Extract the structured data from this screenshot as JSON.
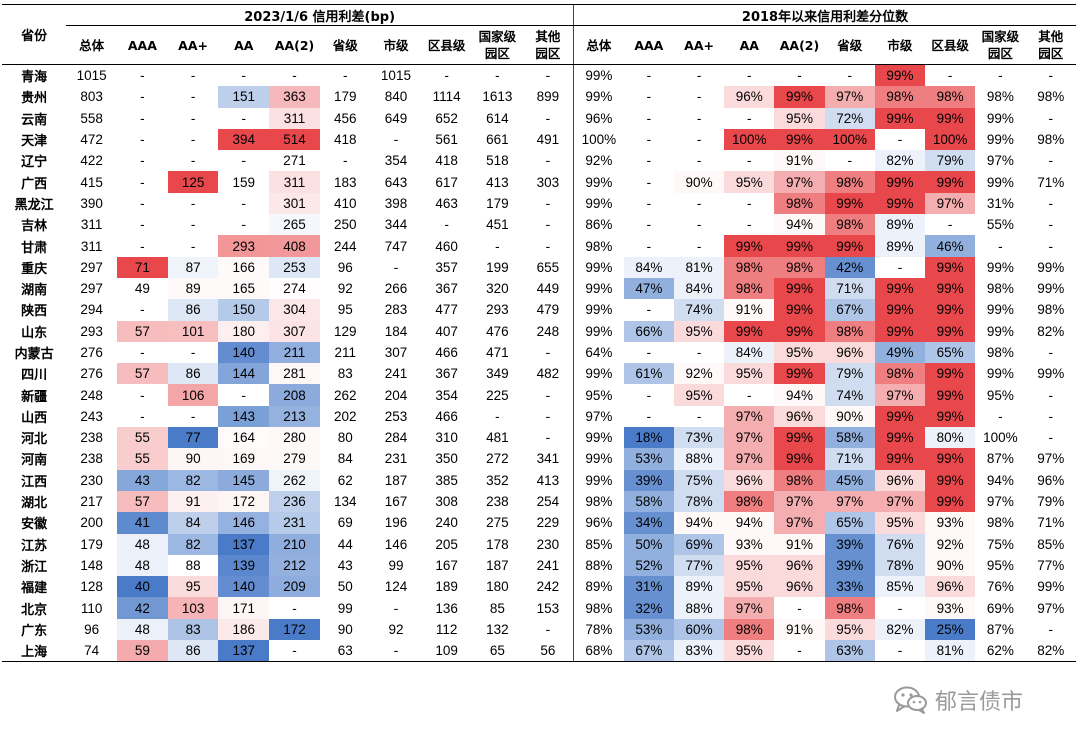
{
  "header": {
    "province_label": "省份",
    "group1_title": "2023/1/6 信用利差(bp)",
    "group2_title": "2018年以来信用利差分位数",
    "columns": [
      "总体",
      "AAA",
      "AA+",
      "AA",
      "AA(2)",
      "省级",
      "市级",
      "区县级",
      "国家级\n园区",
      "其他\n园区"
    ]
  },
  "colors": {
    "high": "#e8474b",
    "low": "#4a7bc8",
    "mid": "#ffffff"
  },
  "rows": [
    {
      "province": "青海",
      "spread": [
        "1015",
        "-",
        "-",
        "-",
        "-",
        "-",
        "1015",
        "-",
        "-",
        "-"
      ],
      "pct": [
        "99%",
        "-",
        "-",
        "-",
        "-",
        "-",
        "99%",
        "-",
        "-",
        "-"
      ]
    },
    {
      "province": "贵州",
      "spread": [
        "803",
        "-",
        "-",
        "151",
        "363",
        "179",
        "840",
        "1114",
        "1613",
        "899"
      ],
      "pct": [
        "99%",
        "-",
        "-",
        "96%",
        "99%",
        "97%",
        "98%",
        "98%",
        "98%",
        "98%"
      ]
    },
    {
      "province": "云南",
      "spread": [
        "558",
        "-",
        "-",
        "-",
        "311",
        "456",
        "649",
        "652",
        "614",
        "-"
      ],
      "pct": [
        "96%",
        "-",
        "-",
        "-",
        "95%",
        "72%",
        "99%",
        "99%",
        "99%",
        "-"
      ]
    },
    {
      "province": "天津",
      "spread": [
        "472",
        "-",
        "-",
        "394",
        "514",
        "418",
        "-",
        "561",
        "661",
        "491"
      ],
      "pct": [
        "100%",
        "-",
        "-",
        "100%",
        "99%",
        "100%",
        "-",
        "100%",
        "99%",
        "98%"
      ]
    },
    {
      "province": "辽宁",
      "spread": [
        "422",
        "-",
        "-",
        "-",
        "271",
        "-",
        "354",
        "418",
        "518",
        "-"
      ],
      "pct": [
        "92%",
        "-",
        "-",
        "-",
        "91%",
        "-",
        "82%",
        "79%",
        "97%",
        "-"
      ]
    },
    {
      "province": "广西",
      "spread": [
        "415",
        "-",
        "125",
        "159",
        "311",
        "183",
        "643",
        "617",
        "413",
        "303"
      ],
      "pct": [
        "99%",
        "-",
        "90%",
        "95%",
        "97%",
        "98%",
        "99%",
        "99%",
        "99%",
        "71%"
      ]
    },
    {
      "province": "黑龙江",
      "spread": [
        "390",
        "-",
        "-",
        "-",
        "301",
        "410",
        "398",
        "463",
        "179",
        "-"
      ],
      "pct": [
        "99%",
        "-",
        "-",
        "-",
        "98%",
        "99%",
        "99%",
        "97%",
        "31%",
        "-"
      ]
    },
    {
      "province": "吉林",
      "spread": [
        "311",
        "-",
        "-",
        "-",
        "265",
        "250",
        "344",
        "-",
        "451",
        "-"
      ],
      "pct": [
        "86%",
        "-",
        "-",
        "-",
        "94%",
        "98%",
        "89%",
        "-",
        "55%",
        "-"
      ]
    },
    {
      "province": "甘肃",
      "spread": [
        "311",
        "-",
        "-",
        "293",
        "408",
        "244",
        "747",
        "460",
        "-",
        "-"
      ],
      "pct": [
        "98%",
        "-",
        "-",
        "99%",
        "99%",
        "99%",
        "89%",
        "46%",
        "-",
        "-"
      ]
    },
    {
      "province": "重庆",
      "spread": [
        "297",
        "71",
        "87",
        "166",
        "253",
        "96",
        "-",
        "357",
        "199",
        "655"
      ],
      "pct": [
        "99%",
        "84%",
        "81%",
        "98%",
        "98%",
        "42%",
        "-",
        "99%",
        "99%",
        "99%"
      ]
    },
    {
      "province": "湖南",
      "spread": [
        "297",
        "49",
        "89",
        "165",
        "274",
        "92",
        "266",
        "367",
        "320",
        "449"
      ],
      "pct": [
        "99%",
        "47%",
        "84%",
        "98%",
        "99%",
        "71%",
        "99%",
        "99%",
        "98%",
        "99%"
      ]
    },
    {
      "province": "陕西",
      "spread": [
        "294",
        "-",
        "86",
        "150",
        "304",
        "95",
        "283",
        "477",
        "293",
        "479"
      ],
      "pct": [
        "99%",
        "-",
        "74%",
        "91%",
        "99%",
        "67%",
        "99%",
        "99%",
        "99%",
        "98%"
      ]
    },
    {
      "province": "山东",
      "spread": [
        "293",
        "57",
        "101",
        "180",
        "307",
        "129",
        "184",
        "407",
        "476",
        "248"
      ],
      "pct": [
        "99%",
        "66%",
        "95%",
        "99%",
        "99%",
        "98%",
        "99%",
        "99%",
        "99%",
        "82%"
      ]
    },
    {
      "province": "内蒙古",
      "spread": [
        "276",
        "-",
        "-",
        "140",
        "211",
        "211",
        "307",
        "466",
        "471",
        "-"
      ],
      "pct": [
        "64%",
        "-",
        "-",
        "84%",
        "95%",
        "96%",
        "49%",
        "65%",
        "98%",
        "-"
      ]
    },
    {
      "province": "四川",
      "spread": [
        "276",
        "57",
        "86",
        "144",
        "281",
        "83",
        "241",
        "367",
        "349",
        "482"
      ],
      "pct": [
        "99%",
        "61%",
        "92%",
        "95%",
        "99%",
        "79%",
        "98%",
        "99%",
        "99%",
        "99%"
      ]
    },
    {
      "province": "新疆",
      "spread": [
        "248",
        "-",
        "106",
        "-",
        "208",
        "262",
        "204",
        "354",
        "225",
        "-"
      ],
      "pct": [
        "95%",
        "-",
        "95%",
        "-",
        "94%",
        "74%",
        "97%",
        "99%",
        "95%",
        "-"
      ]
    },
    {
      "province": "山西",
      "spread": [
        "243",
        "-",
        "-",
        "143",
        "213",
        "202",
        "253",
        "466",
        "-",
        "-"
      ],
      "pct": [
        "97%",
        "-",
        "-",
        "97%",
        "96%",
        "90%",
        "99%",
        "99%",
        "-",
        "-"
      ]
    },
    {
      "province": "河北",
      "spread": [
        "238",
        "55",
        "77",
        "164",
        "280",
        "80",
        "284",
        "310",
        "481",
        "-"
      ],
      "pct": [
        "99%",
        "18%",
        "73%",
        "97%",
        "99%",
        "58%",
        "99%",
        "80%",
        "100%",
        "-"
      ]
    },
    {
      "province": "河南",
      "spread": [
        "238",
        "55",
        "90",
        "169",
        "279",
        "84",
        "231",
        "350",
        "272",
        "341"
      ],
      "pct": [
        "99%",
        "53%",
        "88%",
        "97%",
        "99%",
        "71%",
        "99%",
        "99%",
        "87%",
        "97%"
      ]
    },
    {
      "province": "江西",
      "spread": [
        "230",
        "43",
        "82",
        "145",
        "262",
        "62",
        "187",
        "385",
        "352",
        "413"
      ],
      "pct": [
        "99%",
        "39%",
        "75%",
        "96%",
        "98%",
        "45%",
        "96%",
        "99%",
        "94%",
        "96%"
      ]
    },
    {
      "province": "湖北",
      "spread": [
        "217",
        "57",
        "91",
        "172",
        "236",
        "134",
        "167",
        "308",
        "238",
        "254"
      ],
      "pct": [
        "98%",
        "58%",
        "78%",
        "98%",
        "97%",
        "97%",
        "97%",
        "99%",
        "97%",
        "79%"
      ]
    },
    {
      "province": "安徽",
      "spread": [
        "200",
        "41",
        "84",
        "146",
        "231",
        "69",
        "196",
        "240",
        "275",
        "229"
      ],
      "pct": [
        "96%",
        "34%",
        "94%",
        "94%",
        "97%",
        "65%",
        "95%",
        "93%",
        "98%",
        "71%"
      ]
    },
    {
      "province": "江苏",
      "spread": [
        "179",
        "48",
        "82",
        "137",
        "210",
        "44",
        "146",
        "205",
        "178",
        "230"
      ],
      "pct": [
        "85%",
        "50%",
        "69%",
        "93%",
        "91%",
        "39%",
        "76%",
        "92%",
        "75%",
        "85%"
      ]
    },
    {
      "province": "浙江",
      "spread": [
        "148",
        "48",
        "88",
        "139",
        "212",
        "43",
        "99",
        "167",
        "187",
        "241"
      ],
      "pct": [
        "88%",
        "52%",
        "77%",
        "95%",
        "96%",
        "39%",
        "78%",
        "90%",
        "95%",
        "77%"
      ]
    },
    {
      "province": "福建",
      "spread": [
        "128",
        "40",
        "95",
        "140",
        "209",
        "50",
        "124",
        "189",
        "180",
        "242"
      ],
      "pct": [
        "89%",
        "31%",
        "89%",
        "95%",
        "96%",
        "33%",
        "85%",
        "96%",
        "76%",
        "99%"
      ]
    },
    {
      "province": "北京",
      "spread": [
        "110",
        "42",
        "103",
        "171",
        "-",
        "99",
        "-",
        "136",
        "85",
        "153"
      ],
      "pct": [
        "98%",
        "32%",
        "88%",
        "97%",
        "-",
        "98%",
        "-",
        "93%",
        "69%",
        "97%"
      ]
    },
    {
      "province": "广东",
      "spread": [
        "96",
        "48",
        "83",
        "186",
        "172",
        "90",
        "92",
        "112",
        "132",
        "-"
      ],
      "pct": [
        "78%",
        "53%",
        "60%",
        "98%",
        "91%",
        "95%",
        "82%",
        "25%",
        "87%",
        "-"
      ]
    },
    {
      "province": "上海",
      "spread": [
        "74",
        "59",
        "86",
        "137",
        "-",
        "63",
        "-",
        "109",
        "65",
        "56"
      ],
      "pct": [
        "68%",
        "67%",
        "83%",
        "95%",
        "-",
        "63%",
        "-",
        "81%",
        "62%",
        "82%"
      ]
    }
  ],
  "watermark": {
    "icon": "wechat-icon",
    "text": "郁言债市"
  }
}
